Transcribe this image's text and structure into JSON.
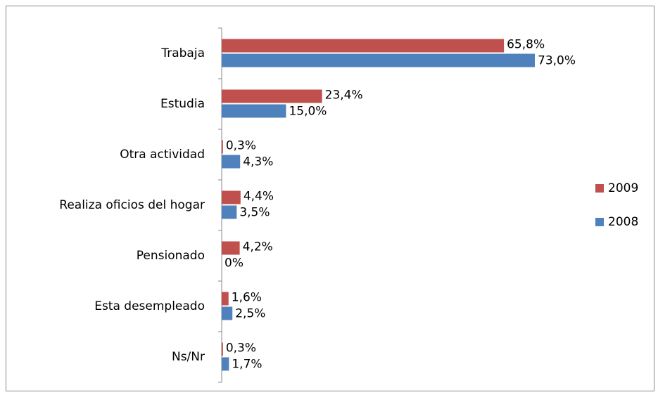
{
  "chart_data": {
    "type": "hbar",
    "categories": [
      "Trabaja",
      "Estudia",
      "Otra actividad",
      "Realiza oficios del hogar",
      "Pensionado",
      "Esta desempleado",
      "Ns/Nr"
    ],
    "series": [
      {
        "name": "2009",
        "color": "#c0504d",
        "values": [
          65.8,
          23.4,
          0.3,
          4.4,
          4.2,
          1.6,
          0.3
        ],
        "value_labels": [
          "65,8%",
          "23,4%",
          "0,3%",
          "4,4%",
          "4,2%",
          "1,6%",
          "0,3%"
        ]
      },
      {
        "name": "2008",
        "color": "#4f81bd",
        "values": [
          73.0,
          15.0,
          4.3,
          3.5,
          0,
          2.5,
          1.7
        ],
        "value_labels": [
          "73,0%",
          "15,0%",
          "4,3%",
          "3,5%",
          "0%",
          "2,5%",
          "1,7%"
        ]
      }
    ],
    "legend": "right"
  }
}
